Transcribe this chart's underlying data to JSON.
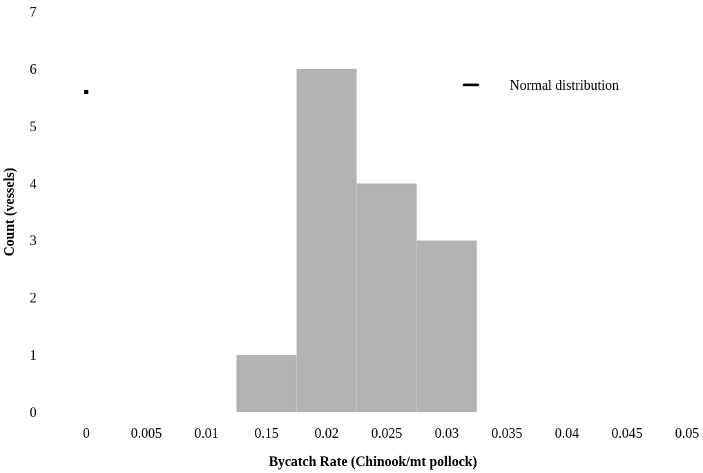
{
  "chart_data": {
    "type": "bar",
    "xlabel": "Bycatch Rate (Chinook/mt pollock)",
    "ylabel": "Count (vessels)",
    "categories": [
      "0",
      "0.005",
      "0.01",
      "0.15",
      "0.02",
      "0.025",
      "0.03",
      "0.035",
      "0.04",
      "0.045",
      "0.05"
    ],
    "series": [
      {
        "color": "#b3b3b3",
        "values": [
          null,
          null,
          null,
          1,
          6,
          4,
          3,
          null,
          null,
          null,
          null
        ]
      },
      {
        "name": "Normal distribution",
        "type": "line",
        "color": "#000000",
        "marker": "square",
        "values": [
          5.6,
          null,
          null,
          null,
          null,
          null,
          null,
          null,
          null,
          null,
          null
        ]
      }
    ],
    "ylim": [
      0,
      7
    ],
    "yticks": [
      0,
      1,
      2,
      3,
      4,
      5,
      6,
      7
    ],
    "grid": false,
    "legend": "top right"
  }
}
